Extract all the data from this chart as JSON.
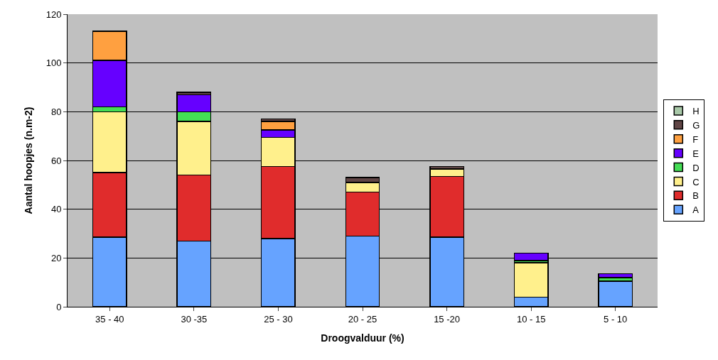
{
  "chart_data": {
    "type": "bar",
    "stacked": true,
    "xlabel": "Droogvalduur (%)",
    "ylabel": "Aantal hoopjes (n.m-2)",
    "categories": [
      "35 - 40",
      "30 -35",
      "25 - 30",
      "20 - 25",
      "15 -20",
      "10 - 15",
      "5 - 10"
    ],
    "ylim": [
      0,
      120
    ],
    "yticks": [
      0,
      20,
      40,
      60,
      80,
      100,
      120
    ],
    "grid": "y",
    "legend": "right",
    "series": [
      {
        "name": "A",
        "color": "#66a3ff",
        "values": [
          28.5,
          27,
          28,
          29,
          28.5,
          4,
          10.5
        ]
      },
      {
        "name": "B",
        "color": "#e02c2c",
        "values": [
          26.5,
          27,
          29.5,
          18,
          25,
          null,
          null
        ]
      },
      {
        "name": "C",
        "color": "#fff08c",
        "values": [
          25,
          22,
          12,
          4,
          3,
          14,
          null
        ]
      },
      {
        "name": "D",
        "color": "#44dd55",
        "values": [
          2,
          4,
          null,
          null,
          null,
          1,
          1.5
        ]
      },
      {
        "name": "E",
        "color": "#6600ff",
        "values": [
          19,
          7,
          3,
          null,
          null,
          3,
          1.5
        ]
      },
      {
        "name": "F",
        "color": "#ffa040",
        "values": [
          12,
          null,
          3.5,
          null,
          null,
          null,
          null
        ]
      },
      {
        "name": "G",
        "color": "#604545",
        "values": [
          null,
          1,
          1,
          2,
          1,
          null,
          null
        ]
      },
      {
        "name": "H",
        "color": "#a8c8a8",
        "values": [
          null,
          null,
          null,
          null,
          null,
          null,
          null
        ]
      }
    ]
  }
}
